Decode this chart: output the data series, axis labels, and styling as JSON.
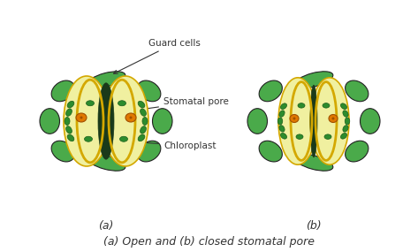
{
  "bg_color": "#ffffff",
  "title": "(a) Open and (b) closed stomatal pore",
  "title_fontsize": 9,
  "title_style": "italic",
  "label_a": "(a)",
  "label_b": "(b)",
  "label_fontsize": 9,
  "annotations": {
    "guard_cells": "Guard cells",
    "stomatal_pore": "Stomatal pore",
    "chloroplast": "Chloroplast"
  },
  "colors": {
    "epidermal_green": "#4aaa4a",
    "epidermal_green_dark": "#2d7a2d",
    "epidermal_green_light": "#5dc45d",
    "guard_cell_yellow": "#f0f0a0",
    "guard_cell_outline": "#d4a800",
    "chloroplast_green": "#2d8c2d",
    "chloroplast_dark": "#1a5c1a",
    "nucleus_orange": "#e07800",
    "nucleus_dark": "#a05000",
    "pore_dark": "#1a3a1a",
    "pore_medium": "#2d5a2d",
    "surrounding_cells": "#55bb55",
    "outline_dark": "#222222"
  }
}
